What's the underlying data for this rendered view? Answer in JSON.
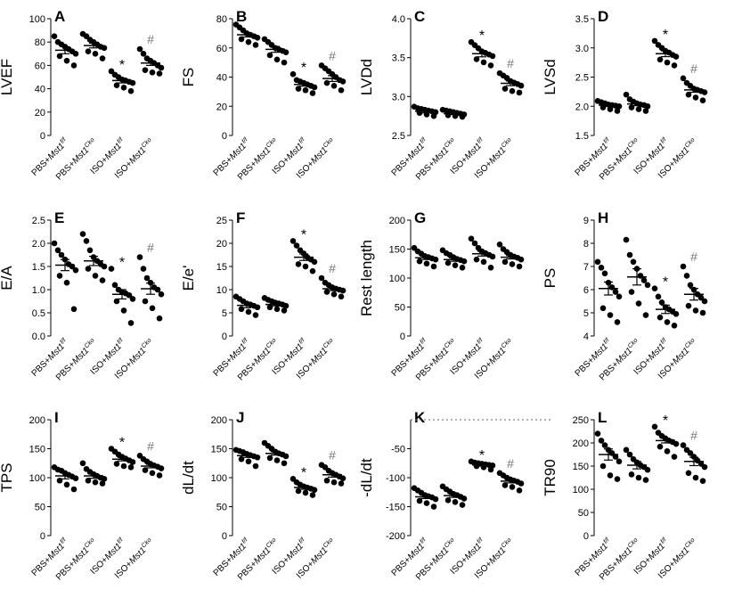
{
  "figure": {
    "group_labels": [
      {
        "prefix": "PBS+",
        "gene": "Mst1",
        "sup": "f/f"
      },
      {
        "prefix": "PBS+",
        "gene": "Mst1",
        "sup": "Cko"
      },
      {
        "prefix": "ISO+",
        "gene": "Mst1",
        "sup": "f/f"
      },
      {
        "prefix": "ISO+",
        "gene": "Mst1",
        "sup": "Cko"
      }
    ],
    "marker_star": "*",
    "marker_hash": "#",
    "colors": {
      "point": "#000000",
      "axis": "#000000",
      "hash": "#777777",
      "star": "#000000"
    }
  },
  "chart_data": [
    {
      "type": "scatter",
      "panel": "A",
      "ylabel": "LVEF",
      "ylim": [
        0,
        100
      ],
      "yticks": [
        "0",
        "20",
        "40",
        "60",
        "80",
        "100"
      ],
      "series": [
        {
          "mean": 73,
          "sem": 3,
          "points": [
            85,
            80,
            78,
            76,
            74,
            72,
            70,
            68,
            64,
            60
          ]
        },
        {
          "mean": 77,
          "sem": 2,
          "points": [
            87,
            85,
            82,
            80,
            78,
            76,
            75,
            72,
            70,
            66
          ]
        },
        {
          "mean": 47,
          "sem": 2,
          "points": [
            55,
            52,
            50,
            48,
            47,
            46,
            45,
            43,
            41,
            38
          ]
        },
        {
          "mean": 62,
          "sem": 2,
          "points": [
            74,
            70,
            66,
            64,
            62,
            60,
            58,
            56,
            54,
            53
          ]
        }
      ],
      "markers": [
        "",
        "",
        "*",
        "#"
      ]
    },
    {
      "type": "scatter",
      "panel": "B",
      "ylabel": "FS",
      "ylim": [
        0,
        80
      ],
      "yticks": [
        "0",
        "20",
        "40",
        "60",
        "80"
      ],
      "series": [
        {
          "mean": 69,
          "sem": 1.5,
          "points": [
            76,
            74,
            72,
            70,
            69,
            68,
            67,
            66,
            64,
            62
          ]
        },
        {
          "mean": 59,
          "sem": 2,
          "points": [
            66,
            64,
            62,
            60,
            59,
            58,
            57,
            55,
            52,
            50
          ]
        },
        {
          "mean": 35,
          "sem": 1.2,
          "points": [
            42,
            38,
            37,
            36,
            35,
            34,
            33,
            32,
            31,
            29
          ]
        },
        {
          "mean": 39,
          "sem": 2,
          "points": [
            48,
            46,
            44,
            42,
            40,
            38,
            37,
            36,
            34,
            31
          ]
        }
      ],
      "markers": [
        "",
        "",
        "*",
        "#"
      ]
    },
    {
      "type": "scatter",
      "panel": "C",
      "ylabel": "LVDd",
      "ylim": [
        2.5,
        4.0
      ],
      "yticks": [
        "2.5",
        "3.0",
        "3.5",
        "4.0"
      ],
      "series": [
        {
          "mean": 2.81,
          "sem": 0.02,
          "points": [
            2.87,
            2.85,
            2.84,
            2.83,
            2.82,
            2.81,
            2.8,
            2.79,
            2.77,
            2.75
          ]
        },
        {
          "mean": 2.78,
          "sem": 0.01,
          "points": [
            2.83,
            2.82,
            2.81,
            2.8,
            2.79,
            2.78,
            2.77,
            2.76,
            2.75,
            2.74
          ]
        },
        {
          "mean": 3.55,
          "sem": 0.04,
          "points": [
            3.7,
            3.66,
            3.62,
            3.58,
            3.56,
            3.54,
            3.52,
            3.48,
            3.44,
            3.4
          ]
        },
        {
          "mean": 3.17,
          "sem": 0.03,
          "points": [
            3.3,
            3.27,
            3.24,
            3.2,
            3.18,
            3.16,
            3.14,
            3.1,
            3.07,
            3.05
          ]
        }
      ],
      "markers": [
        "",
        "",
        "*",
        "#"
      ]
    },
    {
      "type": "scatter",
      "panel": "D",
      "ylabel": "LVSd",
      "ylim": [
        1.5,
        3.5
      ],
      "yticks": [
        "1.5",
        "2.0",
        "2.5",
        "3.0",
        "3.5"
      ],
      "series": [
        {
          "mean": 2.02,
          "sem": 0.02,
          "points": [
            2.09,
            2.07,
            2.05,
            2.03,
            2.02,
            2.01,
            2.0,
            1.98,
            1.95,
            1.92
          ]
        },
        {
          "mean": 2.04,
          "sem": 0.03,
          "points": [
            2.2,
            2.12,
            2.08,
            2.05,
            2.03,
            2.02,
            2.0,
            1.98,
            1.95,
            1.92
          ]
        },
        {
          "mean": 2.9,
          "sem": 0.05,
          "points": [
            3.12,
            3.05,
            3.0,
            2.95,
            2.92,
            2.88,
            2.85,
            2.8,
            2.75,
            2.7
          ]
        },
        {
          "mean": 2.28,
          "sem": 0.04,
          "points": [
            2.48,
            2.4,
            2.35,
            2.3,
            2.28,
            2.26,
            2.24,
            2.2,
            2.15,
            2.1
          ]
        }
      ],
      "markers": [
        "",
        "",
        "*",
        "#"
      ]
    },
    {
      "type": "scatter",
      "panel": "E",
      "ylabel": "E/A",
      "ylim": [
        0.0,
        2.5
      ],
      "yticks": [
        "0.0",
        "0.5",
        "1.0",
        "1.5",
        "2.0",
        "2.5"
      ],
      "series": [
        {
          "mean": 1.53,
          "sem": 0.12,
          "points": [
            2.0,
            1.85,
            1.75,
            1.65,
            1.55,
            1.5,
            1.42,
            1.3,
            1.15,
            0.58
          ]
        },
        {
          "mean": 1.62,
          "sem": 0.1,
          "points": [
            2.2,
            2.05,
            1.85,
            1.7,
            1.62,
            1.55,
            1.5,
            1.45,
            1.3,
            1.2
          ]
        },
        {
          "mean": 0.9,
          "sem": 0.1,
          "points": [
            1.45,
            1.1,
            1.0,
            0.95,
            0.92,
            0.88,
            0.8,
            0.75,
            0.55,
            0.28
          ]
        },
        {
          "mean": 1.02,
          "sem": 0.12,
          "points": [
            1.7,
            1.45,
            1.25,
            1.15,
            1.05,
            1.0,
            0.9,
            0.75,
            0.6,
            0.38
          ]
        }
      ],
      "markers": [
        "",
        "",
        "*",
        "#"
      ]
    },
    {
      "type": "scatter",
      "panel": "F",
      "ylabel": "E/e'",
      "ylim": [
        0,
        25
      ],
      "yticks": [
        "0",
        "5",
        "10",
        "15",
        "20",
        "25"
      ],
      "series": [
        {
          "mean": 6.6,
          "sem": 0.5,
          "points": [
            8.5,
            8.0,
            7.5,
            7.0,
            6.8,
            6.5,
            6.2,
            5.8,
            5.2,
            4.5
          ]
        },
        {
          "mean": 6.8,
          "sem": 0.3,
          "points": [
            8.2,
            7.8,
            7.5,
            7.2,
            7.0,
            6.8,
            6.5,
            6.2,
            5.8,
            5.5
          ]
        },
        {
          "mean": 17.0,
          "sem": 0.7,
          "points": [
            20.5,
            19.5,
            18.5,
            17.8,
            17.0,
            16.5,
            16.0,
            15.5,
            15.0,
            14.0
          ]
        },
        {
          "mean": 10.2,
          "sem": 0.4,
          "points": [
            12.5,
            11.5,
            11.0,
            10.5,
            10.2,
            10.0,
            9.8,
            9.5,
            9.0,
            8.5
          ]
        }
      ],
      "markers": [
        "",
        "",
        "*",
        "#"
      ]
    },
    {
      "type": "scatter",
      "panel": "G",
      "ylabel": "Rest length",
      "ylim": [
        0,
        200
      ],
      "yticks": [
        "0",
        "50",
        "100",
        "150",
        "200"
      ],
      "series": [
        {
          "mean": 135,
          "sem": 3,
          "points": [
            152,
            146,
            142,
            138,
            136,
            134,
            132,
            129,
            125,
            120
          ]
        },
        {
          "mean": 132,
          "sem": 3,
          "points": [
            148,
            143,
            140,
            136,
            133,
            131,
            129,
            126,
            122,
            118
          ]
        },
        {
          "mean": 142,
          "sem": 4,
          "points": [
            168,
            160,
            152,
            146,
            143,
            140,
            137,
            132,
            128,
            118
          ]
        },
        {
          "mean": 136,
          "sem": 3,
          "points": [
            158,
            150,
            145,
            140,
            137,
            135,
            132,
            128,
            124,
            120
          ]
        }
      ],
      "markers": [
        "",
        "",
        "",
        ""
      ]
    },
    {
      "type": "scatter",
      "panel": "H",
      "ylabel": "PS",
      "ylim": [
        4,
        9
      ],
      "yticks": [
        "4",
        "5",
        "6",
        "7",
        "8",
        "9"
      ],
      "series": [
        {
          "mean": 6.05,
          "sem": 0.28,
          "points": [
            7.2,
            6.95,
            6.7,
            6.3,
            6.1,
            5.9,
            5.7,
            5.2,
            4.9,
            4.6
          ]
        },
        {
          "mean": 6.55,
          "sem": 0.35,
          "points": [
            8.15,
            7.5,
            7.2,
            6.9,
            6.6,
            6.4,
            6.2,
            5.9,
            5.4,
            4.9
          ]
        },
        {
          "mean": 5.15,
          "sem": 0.18,
          "points": [
            6.05,
            5.7,
            5.45,
            5.25,
            5.15,
            5.05,
            4.95,
            4.8,
            4.6,
            4.45
          ]
        },
        {
          "mean": 5.8,
          "sem": 0.25,
          "points": [
            7.0,
            6.6,
            6.2,
            6.0,
            5.8,
            5.65,
            5.5,
            5.3,
            5.1,
            5.0
          ]
        }
      ],
      "markers": [
        "",
        "",
        "*",
        "#"
      ]
    },
    {
      "type": "scatter",
      "panel": "I",
      "ylabel": "TPS",
      "ylim": [
        0,
        200
      ],
      "yticks": [
        "0",
        "50",
        "100",
        "150",
        "200"
      ],
      "series": [
        {
          "mean": 103,
          "sem": 5,
          "points": [
            118,
            114,
            112,
            108,
            105,
            102,
            99,
            95,
            88,
            80
          ]
        },
        {
          "mean": 103,
          "sem": 4,
          "points": [
            125,
            115,
            110,
            106,
            103,
            100,
            98,
            95,
            92,
            90
          ]
        },
        {
          "mean": 132,
          "sem": 3,
          "points": [
            150,
            145,
            140,
            136,
            133,
            130,
            127,
            124,
            120,
            118
          ]
        },
        {
          "mean": 120,
          "sem": 3,
          "points": [
            138,
            132,
            128,
            124,
            121,
            119,
            116,
            113,
            108,
            104
          ]
        }
      ],
      "markers": [
        "",
        "",
        "*",
        "#"
      ]
    },
    {
      "type": "scatter",
      "panel": "J",
      "ylabel": "dL/dt",
      "ylim": [
        0,
        200
      ],
      "yticks": [
        "0",
        "50",
        "100",
        "150",
        "200"
      ],
      "series": [
        {
          "mean": 138,
          "sem": 3,
          "points": [
            148,
            146,
            144,
            141,
            139,
            137,
            135,
            132,
            128,
            120
          ]
        },
        {
          "mean": 142,
          "sem": 3,
          "points": [
            160,
            155,
            150,
            145,
            142,
            140,
            137,
            134,
            130,
            125
          ]
        },
        {
          "mean": 83,
          "sem": 3,
          "points": [
            98,
            92,
            88,
            85,
            83,
            81,
            79,
            77,
            74,
            70
          ]
        },
        {
          "mean": 105,
          "sem": 4,
          "points": [
            122,
            118,
            112,
            108,
            105,
            102,
            99,
            95,
            92,
            90
          ]
        }
      ],
      "markers": [
        "",
        "",
        "*",
        "#"
      ]
    },
    {
      "type": "scatter",
      "panel": "K",
      "ylabel": "-dL/dt",
      "ylim": [
        -200,
        0
      ],
      "yticks": [
        "-200",
        "-150",
        "-100",
        "-50"
      ],
      "zero_line": true,
      "series": [
        {
          "mean": -133,
          "sem": 3,
          "points": [
            -118,
            -122,
            -126,
            -130,
            -132,
            -134,
            -137,
            -140,
            -144,
            -150
          ]
        },
        {
          "mean": -131,
          "sem": 3,
          "points": [
            -115,
            -120,
            -124,
            -128,
            -130,
            -133,
            -136,
            -139,
            -142,
            -147
          ]
        },
        {
          "mean": -78,
          "sem": 2,
          "points": [
            -72,
            -74,
            -75,
            -76,
            -77,
            -78,
            -79,
            -80,
            -82,
            -86
          ]
        },
        {
          "mean": -106,
          "sem": 3,
          "points": [
            -92,
            -96,
            -100,
            -103,
            -105,
            -107,
            -110,
            -113,
            -116,
            -122
          ]
        }
      ],
      "markers": [
        "",
        "",
        "*",
        "#"
      ]
    },
    {
      "type": "scatter",
      "panel": "L",
      "ylabel": "TR90",
      "ylim": [
        0,
        250
      ],
      "yticks": [
        "0",
        "50",
        "100",
        "150",
        "200",
        "250"
      ],
      "series": [
        {
          "mean": 175,
          "sem": 12,
          "points": [
            220,
            205,
            195,
            185,
            178,
            170,
            160,
            150,
            130,
            122
          ]
        },
        {
          "mean": 152,
          "sem": 8,
          "points": [
            185,
            175,
            165,
            158,
            152,
            148,
            142,
            132,
            125,
            120
          ]
        },
        {
          "mean": 205,
          "sem": 5,
          "points": [
            235,
            222,
            215,
            210,
            205,
            202,
            198,
            192,
            182,
            170
          ]
        },
        {
          "mean": 160,
          "sem": 9,
          "points": [
            195,
            185,
            178,
            170,
            162,
            155,
            148,
            135,
            125,
            118
          ]
        }
      ],
      "markers": [
        "",
        "",
        "*",
        "#"
      ]
    }
  ]
}
